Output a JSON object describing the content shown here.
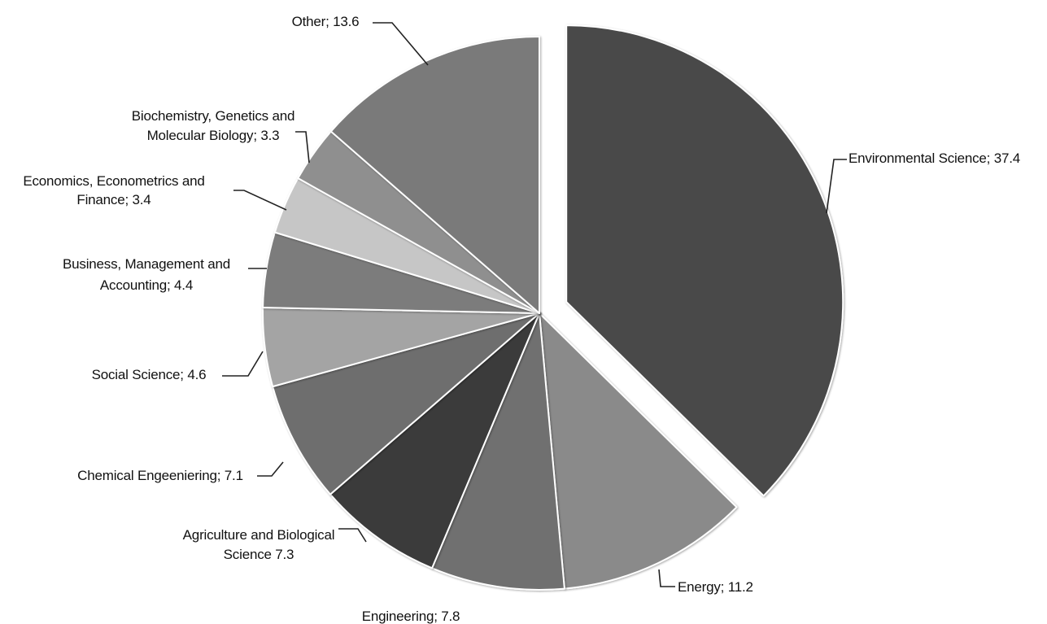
{
  "chart_data": {
    "type": "pie",
    "title": "",
    "slices": [
      {
        "label": "Environmental Science",
        "value": 37.4,
        "display": "Environmental Science; 37.4",
        "color": "#4a4a4a",
        "exploded": true
      },
      {
        "label": "Energy",
        "value": 11.2,
        "display": "Energy; 11.2",
        "color": "#8a8a8a"
      },
      {
        "label": "Engineering",
        "value": 7.8,
        "display": "Engineering; 7.8",
        "color": "#6f6f6f"
      },
      {
        "label": "Agriculture and Biological Science",
        "value": 7.3,
        "display": "Agriculture and Biological Science 7.3",
        "color": "#3b3b3b"
      },
      {
        "label": "Chemical Engeeniering",
        "value": 7.1,
        "display": "Chemical Engeeniering; 7.1",
        "color": "#6e6e6e"
      },
      {
        "label": "Social Science",
        "value": 4.6,
        "display": "Social Science; 4.6",
        "color": "#a4a4a4"
      },
      {
        "label": "Business, Management and Accounting",
        "value": 4.4,
        "display": "Business, Management and Accounting; 4.4",
        "color": "#7c7c7c"
      },
      {
        "label": "Economics, Econometrics and Finance",
        "value": 3.4,
        "display": "Economics, Econometrics and Finance; 3.4",
        "color": "#c6c6c6"
      },
      {
        "label": "Biochemistry, Genetics and Molecular Biology",
        "value": 3.3,
        "display": "Biochemistry, Genetics and Molecular Biology; 3.3",
        "color": "#8f8f8f"
      },
      {
        "label": "Other",
        "value": 13.6,
        "display": "Other; 13.6",
        "color": "#7a7a7a"
      }
    ],
    "start_position": "top",
    "direction": "clockwise",
    "legend": "none",
    "data_labels": "category; value"
  }
}
